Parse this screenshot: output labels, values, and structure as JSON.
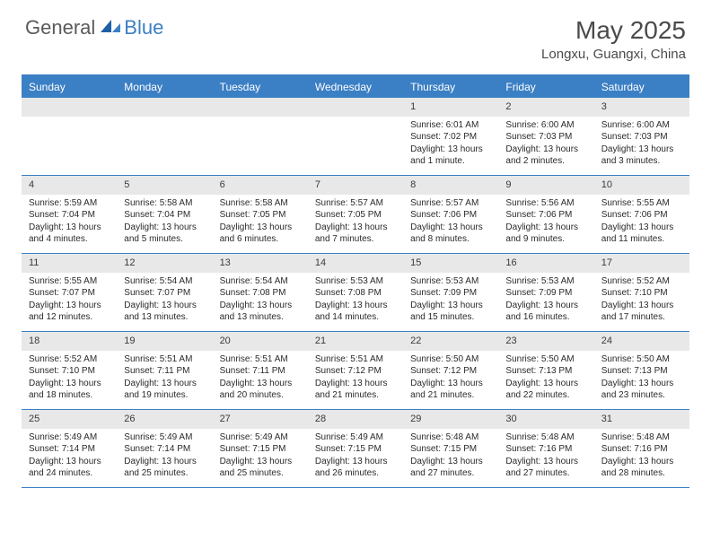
{
  "logo": {
    "general": "General",
    "blue": "Blue"
  },
  "title": "May 2025",
  "location": "Longxu, Guangxi, China",
  "day_headers": [
    "Sunday",
    "Monday",
    "Tuesday",
    "Wednesday",
    "Thursday",
    "Friday",
    "Saturday"
  ],
  "colors": {
    "brand_blue": "#3b7fc4",
    "header_text": "#ffffff",
    "daynum_bg": "#e8e8e8",
    "body_text": "#2a2a2a",
    "title_text": "#4a4a4a"
  },
  "weeks": [
    [
      {
        "n": "",
        "lines": []
      },
      {
        "n": "",
        "lines": []
      },
      {
        "n": "",
        "lines": []
      },
      {
        "n": "",
        "lines": []
      },
      {
        "n": "1",
        "lines": [
          "Sunrise: 6:01 AM",
          "Sunset: 7:02 PM",
          "Daylight: 13 hours and 1 minute."
        ]
      },
      {
        "n": "2",
        "lines": [
          "Sunrise: 6:00 AM",
          "Sunset: 7:03 PM",
          "Daylight: 13 hours and 2 minutes."
        ]
      },
      {
        "n": "3",
        "lines": [
          "Sunrise: 6:00 AM",
          "Sunset: 7:03 PM",
          "Daylight: 13 hours and 3 minutes."
        ]
      }
    ],
    [
      {
        "n": "4",
        "lines": [
          "Sunrise: 5:59 AM",
          "Sunset: 7:04 PM",
          "Daylight: 13 hours and 4 minutes."
        ]
      },
      {
        "n": "5",
        "lines": [
          "Sunrise: 5:58 AM",
          "Sunset: 7:04 PM",
          "Daylight: 13 hours and 5 minutes."
        ]
      },
      {
        "n": "6",
        "lines": [
          "Sunrise: 5:58 AM",
          "Sunset: 7:05 PM",
          "Daylight: 13 hours and 6 minutes."
        ]
      },
      {
        "n": "7",
        "lines": [
          "Sunrise: 5:57 AM",
          "Sunset: 7:05 PM",
          "Daylight: 13 hours and 7 minutes."
        ]
      },
      {
        "n": "8",
        "lines": [
          "Sunrise: 5:57 AM",
          "Sunset: 7:06 PM",
          "Daylight: 13 hours and 8 minutes."
        ]
      },
      {
        "n": "9",
        "lines": [
          "Sunrise: 5:56 AM",
          "Sunset: 7:06 PM",
          "Daylight: 13 hours and 9 minutes."
        ]
      },
      {
        "n": "10",
        "lines": [
          "Sunrise: 5:55 AM",
          "Sunset: 7:06 PM",
          "Daylight: 13 hours and 11 minutes."
        ]
      }
    ],
    [
      {
        "n": "11",
        "lines": [
          "Sunrise: 5:55 AM",
          "Sunset: 7:07 PM",
          "Daylight: 13 hours and 12 minutes."
        ]
      },
      {
        "n": "12",
        "lines": [
          "Sunrise: 5:54 AM",
          "Sunset: 7:07 PM",
          "Daylight: 13 hours and 13 minutes."
        ]
      },
      {
        "n": "13",
        "lines": [
          "Sunrise: 5:54 AM",
          "Sunset: 7:08 PM",
          "Daylight: 13 hours and 13 minutes."
        ]
      },
      {
        "n": "14",
        "lines": [
          "Sunrise: 5:53 AM",
          "Sunset: 7:08 PM",
          "Daylight: 13 hours and 14 minutes."
        ]
      },
      {
        "n": "15",
        "lines": [
          "Sunrise: 5:53 AM",
          "Sunset: 7:09 PM",
          "Daylight: 13 hours and 15 minutes."
        ]
      },
      {
        "n": "16",
        "lines": [
          "Sunrise: 5:53 AM",
          "Sunset: 7:09 PM",
          "Daylight: 13 hours and 16 minutes."
        ]
      },
      {
        "n": "17",
        "lines": [
          "Sunrise: 5:52 AM",
          "Sunset: 7:10 PM",
          "Daylight: 13 hours and 17 minutes."
        ]
      }
    ],
    [
      {
        "n": "18",
        "lines": [
          "Sunrise: 5:52 AM",
          "Sunset: 7:10 PM",
          "Daylight: 13 hours and 18 minutes."
        ]
      },
      {
        "n": "19",
        "lines": [
          "Sunrise: 5:51 AM",
          "Sunset: 7:11 PM",
          "Daylight: 13 hours and 19 minutes."
        ]
      },
      {
        "n": "20",
        "lines": [
          "Sunrise: 5:51 AM",
          "Sunset: 7:11 PM",
          "Daylight: 13 hours and 20 minutes."
        ]
      },
      {
        "n": "21",
        "lines": [
          "Sunrise: 5:51 AM",
          "Sunset: 7:12 PM",
          "Daylight: 13 hours and 21 minutes."
        ]
      },
      {
        "n": "22",
        "lines": [
          "Sunrise: 5:50 AM",
          "Sunset: 7:12 PM",
          "Daylight: 13 hours and 21 minutes."
        ]
      },
      {
        "n": "23",
        "lines": [
          "Sunrise: 5:50 AM",
          "Sunset: 7:13 PM",
          "Daylight: 13 hours and 22 minutes."
        ]
      },
      {
        "n": "24",
        "lines": [
          "Sunrise: 5:50 AM",
          "Sunset: 7:13 PM",
          "Daylight: 13 hours and 23 minutes."
        ]
      }
    ],
    [
      {
        "n": "25",
        "lines": [
          "Sunrise: 5:49 AM",
          "Sunset: 7:14 PM",
          "Daylight: 13 hours and 24 minutes."
        ]
      },
      {
        "n": "26",
        "lines": [
          "Sunrise: 5:49 AM",
          "Sunset: 7:14 PM",
          "Daylight: 13 hours and 25 minutes."
        ]
      },
      {
        "n": "27",
        "lines": [
          "Sunrise: 5:49 AM",
          "Sunset: 7:15 PM",
          "Daylight: 13 hours and 25 minutes."
        ]
      },
      {
        "n": "28",
        "lines": [
          "Sunrise: 5:49 AM",
          "Sunset: 7:15 PM",
          "Daylight: 13 hours and 26 minutes."
        ]
      },
      {
        "n": "29",
        "lines": [
          "Sunrise: 5:48 AM",
          "Sunset: 7:15 PM",
          "Daylight: 13 hours and 27 minutes."
        ]
      },
      {
        "n": "30",
        "lines": [
          "Sunrise: 5:48 AM",
          "Sunset: 7:16 PM",
          "Daylight: 13 hours and 27 minutes."
        ]
      },
      {
        "n": "31",
        "lines": [
          "Sunrise: 5:48 AM",
          "Sunset: 7:16 PM",
          "Daylight: 13 hours and 28 minutes."
        ]
      }
    ]
  ]
}
